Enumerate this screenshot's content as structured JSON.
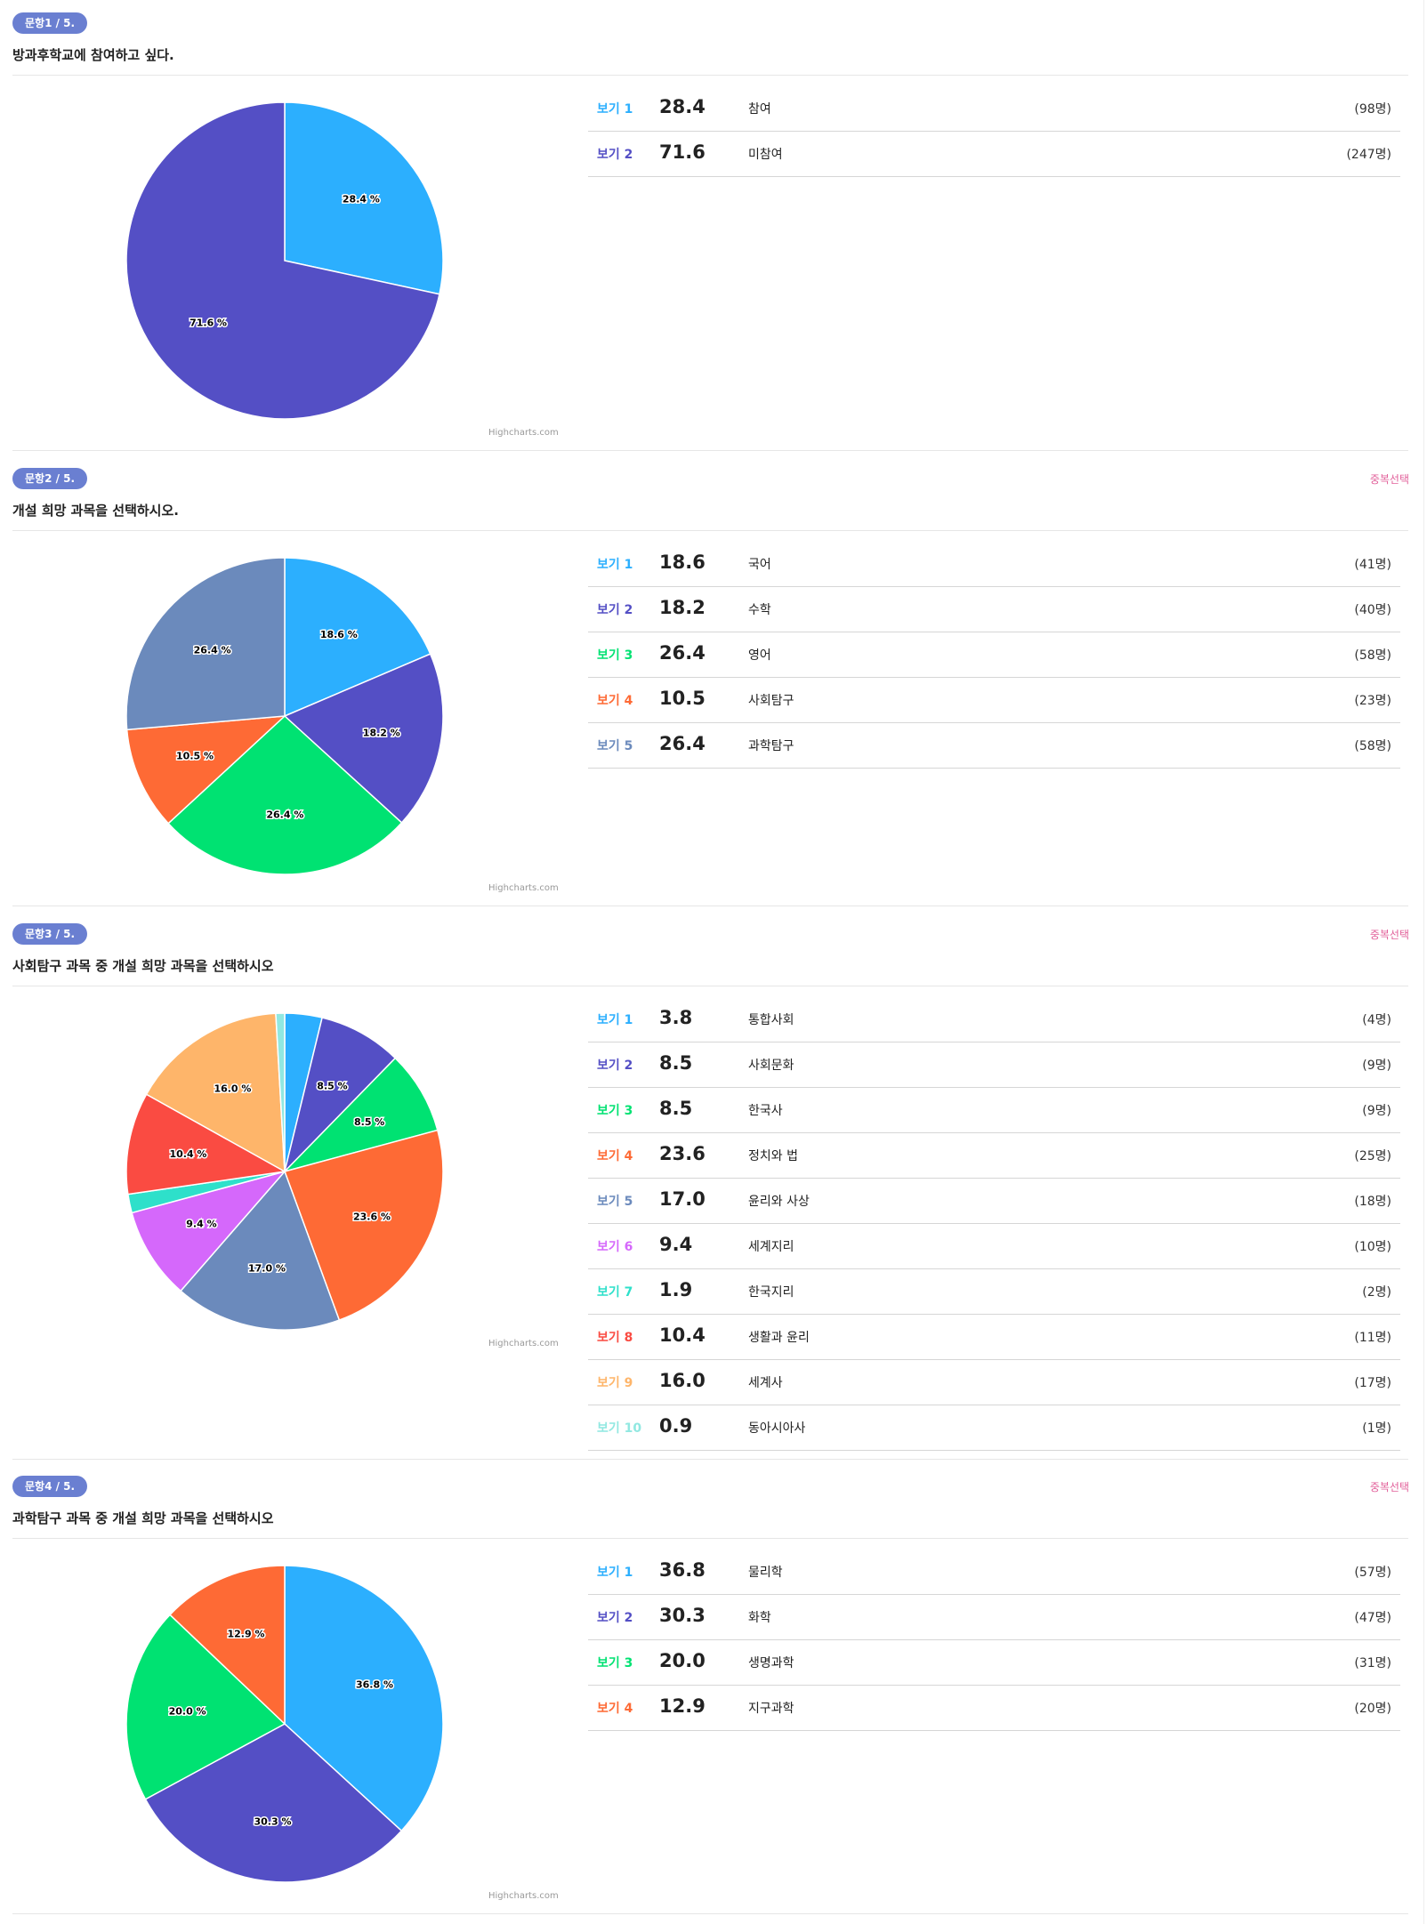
{
  "credit": "Highcharts.com",
  "colors": [
    "#2caffe",
    "#544fc5",
    "#00e272",
    "#fe6a35",
    "#6b8abc",
    "#d568fb",
    "#2ee0ca",
    "#fa4b42",
    "#feb56a",
    "#91e8e1"
  ],
  "questions": [
    {
      "badge": "문항1 / 5.",
      "title": "방과후학교에 참여하고 싶다.",
      "multi": "",
      "options": [
        {
          "label": "보기 1",
          "pct": "28.4",
          "name": "참여",
          "count": "(98명)"
        },
        {
          "label": "보기 2",
          "pct": "71.6",
          "name": "미참여",
          "count": "(247명)"
        }
      ]
    },
    {
      "badge": "문항2 / 5.",
      "title": "개설 희망 과목을 선택하시오.",
      "multi": "중복선택",
      "options": [
        {
          "label": "보기 1",
          "pct": "18.6",
          "name": "국어",
          "count": "(41명)"
        },
        {
          "label": "보기 2",
          "pct": "18.2",
          "name": "수학",
          "count": "(40명)"
        },
        {
          "label": "보기 3",
          "pct": "26.4",
          "name": "영어",
          "count": "(58명)"
        },
        {
          "label": "보기 4",
          "pct": "10.5",
          "name": "사회탐구",
          "count": "(23명)"
        },
        {
          "label": "보기 5",
          "pct": "26.4",
          "name": "과학탐구",
          "count": "(58명)"
        }
      ]
    },
    {
      "badge": "문항3 / 5.",
      "title": "사회탐구 과목 중 개설 희망 과목을 선택하시오",
      "multi": "중복선택",
      "options": [
        {
          "label": "보기 1",
          "pct": "3.8",
          "name": "통합사회",
          "count": "(4명)"
        },
        {
          "label": "보기 2",
          "pct": "8.5",
          "name": "사회문화",
          "count": "(9명)"
        },
        {
          "label": "보기 3",
          "pct": "8.5",
          "name": "한국사",
          "count": "(9명)"
        },
        {
          "label": "보기 4",
          "pct": "23.6",
          "name": "정치와 법",
          "count": "(25명)"
        },
        {
          "label": "보기 5",
          "pct": "17.0",
          "name": "윤리와 사상",
          "count": "(18명)"
        },
        {
          "label": "보기 6",
          "pct": "9.4",
          "name": "세계지리",
          "count": "(10명)"
        },
        {
          "label": "보기 7",
          "pct": "1.9",
          "name": "한국지리",
          "count": "(2명)"
        },
        {
          "label": "보기 8",
          "pct": "10.4",
          "name": "생활과 윤리",
          "count": "(11명)"
        },
        {
          "label": "보기 9",
          "pct": "16.0",
          "name": "세계사",
          "count": "(17명)"
        },
        {
          "label": "보기 10",
          "pct": "0.9",
          "name": "동아시아사",
          "count": "(1명)"
        }
      ]
    },
    {
      "badge": "문항4 / 5.",
      "title": "과학탐구 과목 중 개설 희망 과목을 선택하시오",
      "multi": "중복선택",
      "options": [
        {
          "label": "보기 1",
          "pct": "36.8",
          "name": "물리학",
          "count": "(57명)"
        },
        {
          "label": "보기 2",
          "pct": "30.3",
          "name": "화학",
          "count": "(47명)"
        },
        {
          "label": "보기 3",
          "pct": "20.0",
          "name": "생명과학",
          "count": "(31명)"
        },
        {
          "label": "보기 4",
          "pct": "12.9",
          "name": "지구과학",
          "count": "(20명)"
        }
      ]
    }
  ],
  "chart_data": [
    {
      "type": "pie",
      "categories": [
        "참여",
        "미참여"
      ],
      "values": [
        28.4,
        71.6
      ],
      "labels": [
        "28.4 %",
        "71.6 %"
      ]
    },
    {
      "type": "pie",
      "categories": [
        "국어",
        "수학",
        "영어",
        "사회탐구",
        "과학탐구"
      ],
      "values": [
        18.6,
        18.2,
        26.4,
        10.5,
        26.4
      ],
      "labels": [
        "18.6 %",
        "18.2 %",
        "26.4 %",
        "10.5 %",
        "26.4 %"
      ]
    },
    {
      "type": "pie",
      "categories": [
        "통합사회",
        "사회문화",
        "한국사",
        "정치와 법",
        "윤리와 사상",
        "세계지리",
        "한국지리",
        "생활과 윤리",
        "세계사",
        "동아시아사"
      ],
      "values": [
        3.8,
        8.5,
        8.5,
        23.6,
        17.0,
        9.4,
        1.9,
        10.4,
        16.0,
        0.9
      ],
      "labels": [
        "",
        "8.5 %",
        "8.5 %",
        "23.6 %",
        "17.0 %",
        "9.4 %",
        "",
        "10.4 %",
        "16.0 %",
        ""
      ]
    },
    {
      "type": "pie",
      "categories": [
        "물리학",
        "화학",
        "생명과학",
        "지구과학"
      ],
      "values": [
        36.8,
        30.3,
        20.0,
        12.9
      ],
      "labels": [
        "36.8 %",
        "30.3 %",
        "20.0 %",
        "12.9 %"
      ]
    }
  ]
}
